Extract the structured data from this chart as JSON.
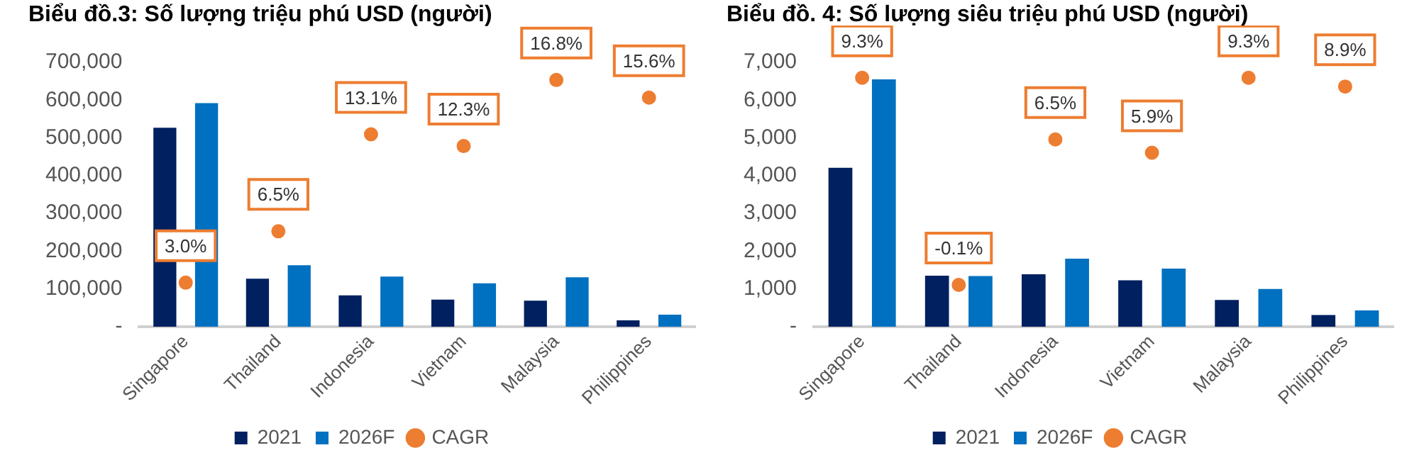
{
  "chart_data": [
    {
      "type": "bar",
      "title": "Biểu đồ.3: Số lượng triệu phú USD (người)",
      "categories": [
        "Singapore",
        "Thailand",
        "Indonesia",
        "Vietnam",
        "Malaysia",
        "Philippines"
      ],
      "series": [
        {
          "name": "2021",
          "color": "#002060",
          "values": [
            527000,
            127000,
            83000,
            72000,
            69000,
            17000
          ]
        },
        {
          "name": "2026F",
          "color": "#0070c0",
          "values": [
            592000,
            163000,
            133000,
            115000,
            131000,
            32000
          ]
        },
        {
          "name": "CAGR",
          "type": "scatter",
          "axis": "y2",
          "marker": "circle",
          "color": "#ed7d31",
          "values": [
            3.0,
            6.5,
            13.1,
            12.3,
            16.8,
            15.6
          ],
          "value_labels": [
            "3.0%",
            "6.5%",
            "13.1%",
            "12.3%",
            "16.8%",
            "15.6%"
          ]
        }
      ],
      "ylim": [
        0,
        700000
      ],
      "yticks": [
        {
          "value": 0,
          "label": "-"
        },
        {
          "value": 100000,
          "label": "100,000"
        },
        {
          "value": 200000,
          "label": "200,000"
        },
        {
          "value": 300000,
          "label": "300,000"
        },
        {
          "value": 400000,
          "label": "400,000"
        },
        {
          "value": 500000,
          "label": "500,000"
        },
        {
          "value": 600000,
          "label": "600,000"
        },
        {
          "value": 700000,
          "label": "700,000"
        }
      ],
      "grid": false,
      "legend": "bottom"
    },
    {
      "type": "bar",
      "title": "Biểu đồ. 4: Số lượng siêu triệu phú USD (người)",
      "categories": [
        "Singapore",
        "Thailand",
        "Indonesia",
        "Vietnam",
        "Malaysia",
        "Philippines"
      ],
      "series": [
        {
          "name": "2021",
          "color": "#002060",
          "values": [
            4210,
            1350,
            1390,
            1230,
            710,
            310
          ]
        },
        {
          "name": "2026F",
          "color": "#0070c0",
          "values": [
            6550,
            1340,
            1800,
            1540,
            1000,
            430
          ]
        },
        {
          "name": "CAGR",
          "type": "scatter",
          "axis": "y2",
          "marker": "circle",
          "color": "#ed7d31",
          "values": [
            9.3,
            -0.1,
            6.5,
            5.9,
            9.3,
            8.9
          ],
          "value_labels": [
            "9.3%",
            "-0.1%",
            "6.5%",
            "5.9%",
            "9.3%",
            "8.9%"
          ]
        }
      ],
      "ylim": [
        0,
        7000
      ],
      "yticks": [
        {
          "value": 0,
          "label": "-"
        },
        {
          "value": 1000,
          "label": "1,000"
        },
        {
          "value": 2000,
          "label": "2,000"
        },
        {
          "value": 3000,
          "label": "3,000"
        },
        {
          "value": 4000,
          "label": "4,000"
        },
        {
          "value": 5000,
          "label": "5,000"
        },
        {
          "value": 6000,
          "label": "6,000"
        },
        {
          "value": 7000,
          "label": "7,000"
        }
      ],
      "grid": false,
      "legend": "bottom"
    }
  ]
}
